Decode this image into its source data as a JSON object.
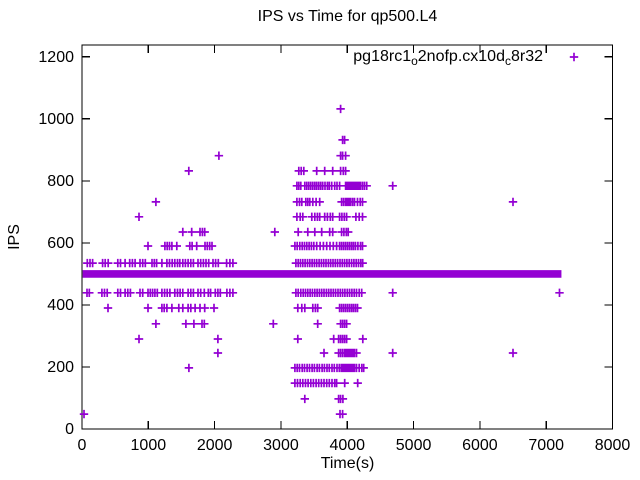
{
  "title": "IPS vs Time for qp500.L4",
  "legend": {
    "raw_label": "pg18rc1_o2nofp.cx10d_c8r32",
    "display_parts": [
      {
        "text": "pg18rc1",
        "sub": false
      },
      {
        "text": "o",
        "sub": true
      },
      {
        "text": "2nofp.cx10d",
        "sub": false
      },
      {
        "text": "c",
        "sub": true
      },
      {
        "text": "8r32",
        "sub": false
      }
    ],
    "marker": "plus"
  },
  "chart_data": {
    "type": "scatter",
    "title": "IPS vs Time for qp500.L4",
    "xlabel": "Time(s)",
    "ylabel": "IPS",
    "xlim": [
      0,
      8000
    ],
    "ylim": [
      0,
      1238
    ],
    "x_ticks": [
      0,
      1000,
      2000,
      3000,
      4000,
      5000,
      6000,
      7000,
      8000
    ],
    "y_ticks": [
      0,
      200,
      400,
      600,
      800,
      1000,
      1200
    ],
    "grid": false,
    "legend_position": "top-right-inside",
    "marker_color": "#9400D3",
    "marker_glyph": "+",
    "series_name": "pg18rc1_o2nofp.cx10d_c8r32",
    "dense_band": {
      "ips": 500,
      "t_start": 10,
      "t_end": 7230,
      "note": "continuous dense run of points rendered as a solid bar"
    },
    "points_by_ips": [
      {
        "ips": 1032,
        "t": [
          3900
        ]
      },
      {
        "ips": 932,
        "t": [
          3930,
          3960
        ]
      },
      {
        "ips": 881,
        "t": [
          2065,
          3900,
          3930,
          3975
        ]
      },
      {
        "ips": 832,
        "t": [
          1610,
          3270,
          3305,
          3345,
          3540,
          3660,
          3780,
          3900,
          3940,
          3975
        ]
      },
      {
        "ips": 784,
        "t": [
          3240,
          3270,
          3300,
          3360,
          3390,
          3420,
          3450,
          3480,
          3510,
          3540,
          3570,
          3600,
          3630,
          3665,
          3700,
          3730,
          3765,
          3810,
          3845,
          3885,
          3975,
          3995,
          4015,
          4035,
          4055,
          4075,
          4095,
          4115,
          4135,
          4155,
          4175,
          4200,
          4230,
          4260,
          4294,
          4685
        ]
      },
      {
        "ips": 732,
        "t": [
          1115,
          3240,
          3280,
          3315,
          3375,
          3405,
          3435,
          3480,
          3530,
          3585,
          3915,
          3945,
          3975,
          4000,
          4025,
          4050,
          4080,
          4110,
          4155,
          4195,
          4230,
          6500
        ]
      },
      {
        "ips": 684,
        "t": [
          860,
          3240,
          3290,
          3330,
          3465,
          3510,
          3550,
          3585,
          3660,
          3700,
          3745,
          3780,
          3885,
          3920,
          3955,
          3990,
          4130,
          4180,
          4230
        ]
      },
      {
        "ips": 635,
        "t": [
          1520,
          1655,
          1780,
          1815,
          1850,
          2908,
          3260,
          3405,
          3510,
          3615,
          3735,
          3780,
          3915,
          3950,
          3985,
          4015
        ]
      },
      {
        "ips": 590,
        "t": [
          995,
          1250,
          1285,
          1320,
          1355,
          1430,
          1625,
          1660,
          1730,
          1855,
          1890,
          1925,
          1960,
          3210,
          3245,
          3285,
          3320,
          3355,
          3390,
          3425,
          3460,
          3495,
          3540,
          3590,
          3640,
          3690,
          3740,
          3790,
          3840,
          3885,
          3915,
          3945,
          3975,
          4005,
          4035,
          4065,
          4095,
          4125,
          4160,
          4200,
          4230
        ]
      },
      {
        "ips": 535,
        "t": [
          80,
          120,
          160,
          310,
          350,
          395,
          540,
          580,
          650,
          720,
          760,
          800,
          875,
          915,
          955,
          1055,
          1090,
          1125,
          1205,
          1280,
          1320,
          1360,
          1400,
          1440,
          1475,
          1520,
          1560,
          1600,
          1640,
          1680,
          1750,
          1790,
          1830,
          1870,
          1910,
          1975,
          2015,
          2055,
          2180,
          2230,
          2275,
          3225,
          3260,
          3295,
          3330,
          3365,
          3400,
          3435,
          3470,
          3505,
          3540,
          3575,
          3610,
          3645,
          3680,
          3715,
          3750,
          3785,
          3820,
          3855,
          3890,
          3925,
          3960,
          3995,
          4030,
          4065,
          4100,
          4135,
          4170,
          4205,
          4233
        ]
      },
      {
        "ips": 439,
        "t": [
          75,
          110,
          300,
          340,
          380,
          540,
          580,
          650,
          690,
          730,
          875,
          915,
          995,
          1030,
          1065,
          1100,
          1135,
          1205,
          1245,
          1285,
          1325,
          1400,
          1440,
          1480,
          1520,
          1600,
          1640,
          1680,
          1750,
          1790,
          1845,
          1905,
          1940,
          2010,
          2050,
          2085,
          2185,
          2230,
          2275,
          3225,
          3260,
          3300,
          3335,
          3370,
          3405,
          3440,
          3475,
          3510,
          3545,
          3580,
          3615,
          3650,
          3685,
          3720,
          3755,
          3790,
          3825,
          3860,
          3895,
          3930,
          3965,
          4000,
          4035,
          4070,
          4105,
          4140,
          4180,
          4218,
          4685,
          7200
        ]
      },
      {
        "ips": 390,
        "t": [
          392,
          995,
          1205,
          1240,
          1280,
          1355,
          1460,
          1520,
          1600,
          1640,
          1705,
          1780,
          1850,
          1990,
          3255,
          3315,
          3360,
          3480,
          3520,
          3555,
          3885,
          3915,
          3945,
          3975,
          4005,
          4035,
          4065,
          4095,
          4125,
          4155
        ]
      },
      {
        "ips": 339,
        "t": [
          1115,
          1567,
          1688,
          1810,
          1845,
          2885,
          3555,
          3900,
          3930,
          3960,
          3990
        ]
      },
      {
        "ips": 290,
        "t": [
          860,
          2050,
          3255,
          3795,
          3870,
          3900,
          3930,
          3960,
          3990,
          4234
        ]
      },
      {
        "ips": 245,
        "t": [
          2050,
          3650,
          3870,
          3900,
          3930,
          3960,
          3985,
          4010,
          4035,
          4060,
          4085,
          4110,
          4140,
          4685,
          6500
        ]
      },
      {
        "ips": 197,
        "t": [
          1612,
          3210,
          3245,
          3280,
          3320,
          3355,
          3395,
          3430,
          3470,
          3505,
          3545,
          3580,
          3620,
          3655,
          3695,
          3730,
          3770,
          3805,
          3845,
          3880,
          3910,
          3935,
          3960,
          3985,
          4010,
          4035,
          4060,
          4085,
          4110,
          4140,
          4180,
          4220,
          4248
        ]
      },
      {
        "ips": 148,
        "t": [
          3210,
          3250,
          3290,
          3330,
          3370,
          3410,
          3450,
          3490,
          3530,
          3570,
          3610,
          3650,
          3690,
          3730,
          3770,
          3810,
          3840,
          3962,
          4158
        ]
      },
      {
        "ips": 97,
        "t": [
          3360,
          3870,
          3900,
          3935
        ]
      },
      {
        "ips": 48,
        "t": [
          30,
          3890,
          3930
        ]
      }
    ]
  }
}
